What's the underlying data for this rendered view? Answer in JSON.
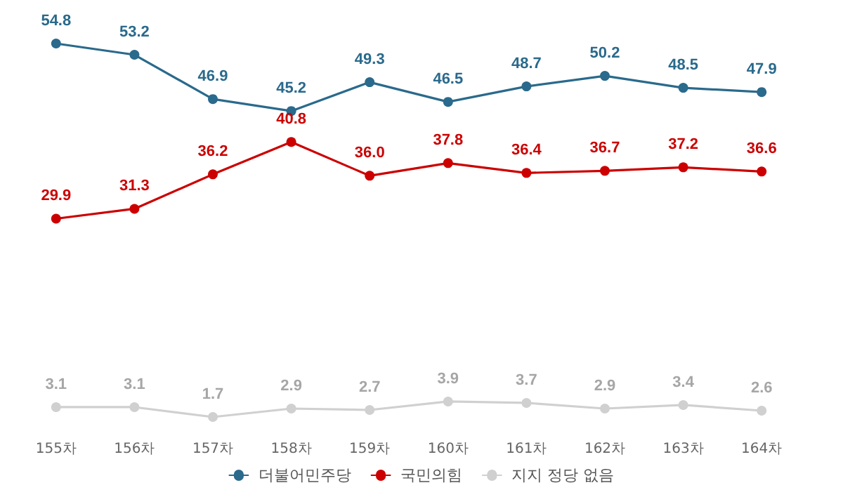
{
  "chart_data": {
    "type": "line",
    "categories": [
      "155차",
      "156차",
      "157차",
      "158차",
      "159차",
      "160차",
      "161차",
      "162차",
      "163차",
      "164차"
    ],
    "series": [
      {
        "name": "더불어민주당",
        "color": "#2a6a8c",
        "values": [
          54.8,
          53.2,
          46.9,
          45.2,
          49.3,
          46.5,
          48.7,
          50.2,
          48.5,
          47.9
        ],
        "value_labels": [
          "54.8",
          "53.2",
          "46.9",
          "45.2",
          "49.3",
          "46.5",
          "48.7",
          "50.2",
          "48.5",
          "47.9"
        ]
      },
      {
        "name": "국민의힘",
        "color": "#cc0000",
        "values": [
          29.9,
          31.3,
          36.2,
          40.8,
          36.0,
          37.8,
          36.4,
          36.7,
          37.2,
          36.6
        ],
        "value_labels": [
          "29.9",
          "31.3",
          "36.2",
          "40.8",
          "36.0",
          "37.8",
          "36.4",
          "36.7",
          "37.2",
          "36.6"
        ]
      },
      {
        "name": "지지 정당 없음",
        "color": "#d0d0d0",
        "values": [
          3.1,
          3.1,
          1.7,
          2.9,
          2.7,
          3.9,
          3.7,
          2.9,
          3.4,
          2.6
        ],
        "value_labels": [
          "3.1",
          "3.1",
          "1.7",
          "2.9",
          "2.7",
          "3.9",
          "3.7",
          "2.9",
          "3.4",
          "2.6"
        ]
      }
    ],
    "marker": "circle",
    "line_style": "solid",
    "legend": "bottom"
  }
}
